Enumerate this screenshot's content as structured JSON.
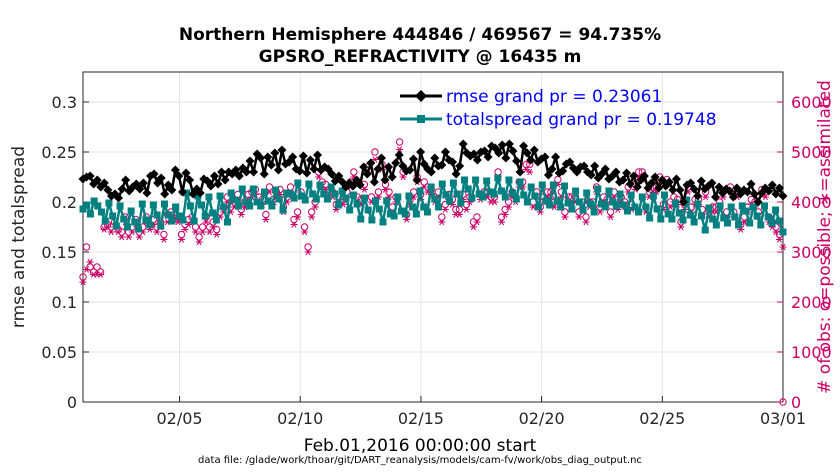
{
  "title_line1": "Northern Hemisphere 444846 / 469567 = 94.735%",
  "title_line2": "GPSRO_REFRACTIVITY @ 16435 m",
  "xlabel": "Feb.01,2016 00:00:00 start",
  "ylabel_left": "rmse and totalspread",
  "ylabel_right": "# of obs: o=possible; ∗=assimilated",
  "footer": "data file: /glade/work/thoar/git/DART_reanalysis/models/cam-fv/work/obs_diag_output.nc",
  "colors": {
    "rmse": "#000000",
    "spread": "#008080",
    "obs": "#cc0066",
    "legend_text": "#0000ff",
    "right_axis": "#cc0066"
  },
  "chart_data": {
    "type": "line",
    "x_unit": "day of Feb 2016 (6-hourly)",
    "xlim": [
      1,
      30
    ],
    "x_ticks": [
      5,
      10,
      15,
      20,
      25,
      30
    ],
    "x_tick_labels": [
      "02/05",
      "02/10",
      "02/15",
      "02/20",
      "02/25",
      "03/01"
    ],
    "ylim_left": [
      0,
      0.33
    ],
    "y_ticks_left": [
      0,
      0.05,
      0.1,
      0.15,
      0.2,
      0.25,
      0.3
    ],
    "y_tick_labels_left": [
      "0",
      "0.05",
      "0.1",
      "0.15",
      "0.2",
      "0.25",
      "0.3"
    ],
    "ylim_right": [
      0,
      6600
    ],
    "y_ticks_right": [
      0,
      1000,
      2000,
      3000,
      4000,
      5000,
      6000
    ],
    "y_tick_labels_right": [
      "0",
      "1000",
      "2000",
      "3000",
      "4000",
      "5000",
      "6000"
    ],
    "grid": true,
    "legend_position": "top-right",
    "series": [
      {
        "name": "rmse grand pr = 0.23061",
        "axis": "left",
        "marker": "diamond",
        "values": [
          0.223,
          0.225,
          0.226,
          0.218,
          0.222,
          0.215,
          0.219,
          0.212,
          0.206,
          0.208,
          0.204,
          0.213,
          0.222,
          0.211,
          0.215,
          0.218,
          0.213,
          0.219,
          0.209,
          0.226,
          0.228,
          0.219,
          0.224,
          0.208,
          0.217,
          0.212,
          0.232,
          0.226,
          0.21,
          0.229,
          0.222,
          0.208,
          0.213,
          0.209,
          0.223,
          0.221,
          0.216,
          0.226,
          0.218,
          0.23,
          0.222,
          0.23,
          0.228,
          0.232,
          0.226,
          0.234,
          0.23,
          0.241,
          0.23,
          0.248,
          0.244,
          0.228,
          0.245,
          0.237,
          0.249,
          0.232,
          0.252,
          0.238,
          0.24,
          0.245,
          0.233,
          0.231,
          0.246,
          0.229,
          0.242,
          0.233,
          0.247,
          0.232,
          0.235,
          0.233,
          0.228,
          0.221,
          0.226,
          0.22,
          0.215,
          0.219,
          0.216,
          0.222,
          0.217,
          0.235,
          0.228,
          0.239,
          0.22,
          0.233,
          0.244,
          0.222,
          0.235,
          0.225,
          0.239,
          0.247,
          0.236,
          0.231,
          0.232,
          0.243,
          0.222,
          0.25,
          0.238,
          0.233,
          0.23,
          0.244,
          0.236,
          0.237,
          0.25,
          0.242,
          0.24,
          0.228,
          0.236,
          0.258,
          0.249,
          0.246,
          0.248,
          0.242,
          0.25,
          0.251,
          0.245,
          0.256,
          0.254,
          0.249,
          0.257,
          0.244,
          0.258,
          0.251,
          0.241,
          0.23,
          0.256,
          0.249,
          0.242,
          0.252,
          0.24,
          0.243,
          0.245,
          0.227,
          0.233,
          0.245,
          0.229,
          0.231,
          0.238,
          0.24,
          0.234,
          0.23,
          0.235,
          0.236,
          0.23,
          0.227,
          0.236,
          0.224,
          0.228,
          0.233,
          0.223,
          0.226,
          0.23,
          0.22,
          0.222,
          0.229,
          0.218,
          0.226,
          0.215,
          0.222,
          0.226,
          0.214,
          0.219,
          0.225,
          0.214,
          0.222,
          0.216,
          0.22,
          0.212,
          0.223,
          0.212,
          0.2,
          0.217,
          0.219,
          0.213,
          0.206,
          0.221,
          0.213,
          0.216,
          0.219,
          0.205,
          0.215,
          0.209,
          0.213,
          0.211,
          0.205,
          0.214,
          0.208,
          0.212,
          0.21,
          0.218,
          0.208,
          0.2,
          0.209,
          0.214,
          0.211,
          0.217,
          0.208,
          0.214,
          0.206
        ],
        "color": "#000000"
      },
      {
        "name": "totalspread grand pr = 0.19748",
        "axis": "left",
        "marker": "square",
        "values": [
          0.193,
          0.197,
          0.188,
          0.201,
          0.196,
          0.19,
          0.181,
          0.199,
          0.186,
          0.176,
          0.196,
          0.183,
          0.175,
          0.191,
          0.18,
          0.173,
          0.198,
          0.182,
          0.177,
          0.197,
          0.187,
          0.176,
          0.198,
          0.187,
          0.181,
          0.195,
          0.186,
          0.182,
          0.209,
          0.196,
          0.181,
          0.206,
          0.197,
          0.186,
          0.205,
          0.189,
          0.182,
          0.206,
          0.195,
          0.18,
          0.209,
          0.202,
          0.196,
          0.213,
          0.2,
          0.196,
          0.213,
          0.2,
          0.196,
          0.21,
          0.201,
          0.196,
          0.212,
          0.203,
          0.192,
          0.209,
          0.208,
          0.204,
          0.219,
          0.206,
          0.202,
          0.218,
          0.208,
          0.203,
          0.217,
          0.208,
          0.203,
          0.215,
          0.208,
          0.197,
          0.211,
          0.204,
          0.192,
          0.207,
          0.198,
          0.183,
          0.204,
          0.192,
          0.182,
          0.201,
          0.193,
          0.18,
          0.201,
          0.188,
          0.186,
          0.205,
          0.191,
          0.188,
          0.206,
          0.195,
          0.188,
          0.211,
          0.195,
          0.19,
          0.215,
          0.203,
          0.195,
          0.218,
          0.207,
          0.201,
          0.219,
          0.208,
          0.199,
          0.222,
          0.213,
          0.204,
          0.222,
          0.208,
          0.205,
          0.221,
          0.21,
          0.208,
          0.224,
          0.211,
          0.205,
          0.222,
          0.209,
          0.203,
          0.22,
          0.207,
          0.2,
          0.215,
          0.206,
          0.195,
          0.217,
          0.201,
          0.197,
          0.217,
          0.201,
          0.195,
          0.216,
          0.199,
          0.193,
          0.211,
          0.2,
          0.192,
          0.209,
          0.198,
          0.19,
          0.213,
          0.198,
          0.195,
          0.211,
          0.2,
          0.196,
          0.208,
          0.197,
          0.191,
          0.207,
          0.195,
          0.19,
          0.205,
          0.195,
          0.184,
          0.206,
          0.193,
          0.183,
          0.207,
          0.188,
          0.183,
          0.199,
          0.189,
          0.182,
          0.202,
          0.187,
          0.18,
          0.198,
          0.186,
          0.172,
          0.194,
          0.183,
          0.177,
          0.196,
          0.184,
          0.179,
          0.195,
          0.185,
          0.177,
          0.196,
          0.191,
          0.179,
          0.195,
          0.186,
          0.177,
          0.196,
          0.185,
          0.179,
          0.192,
          0.181,
          0.17
        ],
        "color": "#008080"
      },
      {
        "name": "possible",
        "axis": "right",
        "marker": "circle",
        "values": [
          2500,
          3100,
          2700,
          2600,
          2700,
          2600,
          3500,
          3550,
          3500,
          3600,
          3450,
          3400,
          3700,
          3400,
          3500,
          3650,
          3400,
          3500,
          3700,
          3550,
          3650,
          3500,
          3600,
          3350,
          3750,
          3800,
          3750,
          3700,
          3350,
          3550,
          3650,
          3700,
          3500,
          3300,
          3500,
          3700,
          3500,
          3600,
          3450,
          3800,
          3900,
          4100,
          3900,
          4000,
          4150,
          3850,
          4000,
          4150,
          4200,
          4250,
          4100,
          4050,
          3750,
          4300,
          4050,
          4200,
          4250,
          3900,
          4100,
          4300,
          3650,
          3800,
          4200,
          3500,
          3100,
          3800,
          4000,
          4600,
          4400,
          4350,
          4250,
          4200,
          3950,
          4100,
          4050,
          4200,
          4400,
          4600,
          4100,
          4050,
          4350,
          4700,
          4100,
          5000,
          4200,
          4750,
          4350,
          4200,
          3900,
          4100,
          5200,
          4600,
          3750,
          4050,
          4200,
          4500,
          4150,
          4400,
          4300,
          4250,
          4100,
          4200,
          3700,
          3950,
          4150,
          4050,
          3850,
          3850,
          4150,
          3950,
          4100,
          3600,
          3700,
          4150,
          4200,
          4200,
          4100,
          4100,
          4600,
          3700,
          3850,
          4000,
          4200,
          4100,
          4400,
          4400,
          4750,
          4750,
          4000,
          4200,
          3900,
          4100,
          4200,
          4200,
          4000,
          4450,
          4200,
          3800,
          4100,
          4100,
          4100,
          3800,
          4000,
          3700,
          4000,
          4000,
          4300,
          3900,
          4100,
          4050,
          3800,
          4200,
          3950,
          4100,
          4000,
          4300,
          3950,
          4350,
          4600,
          4600,
          3900,
          4200,
          4300,
          4300,
          4500,
          3950,
          4450,
          4000,
          4100,
          4050,
          3600,
          3950,
          4300,
          3900,
          4050,
          4050,
          3850,
          4200,
          3800,
          3900,
          3900,
          4000,
          4200,
          3800,
          4300,
          3800,
          4200,
          3550,
          3700,
          3900,
          4050,
          4000,
          3800,
          4250,
          4200,
          3700,
          3600,
          3500,
          3350,
          0
        ],
        "color": "#cc0066"
      },
      {
        "name": "assimilated",
        "axis": "right",
        "marker": "asterisk",
        "values": [
          2400,
          2650,
          2800,
          2550,
          2550,
          2550,
          3450,
          3500,
          3400,
          3500,
          3400,
          3300,
          3600,
          3300,
          3400,
          3550,
          3300,
          3400,
          3600,
          3450,
          3550,
          3400,
          3500,
          3250,
          3600,
          3700,
          3650,
          3600,
          3250,
          3450,
          3550,
          3600,
          3400,
          3200,
          3400,
          3600,
          3400,
          3500,
          3350,
          3700,
          3800,
          4000,
          3800,
          3900,
          4050,
          3750,
          3900,
          4050,
          4100,
          4150,
          4000,
          3950,
          3650,
          4200,
          3950,
          4100,
          4150,
          3800,
          4000,
          4200,
          3550,
          3700,
          4100,
          3400,
          3000,
          3700,
          3900,
          4500,
          4300,
          4250,
          4150,
          4100,
          3850,
          4000,
          3950,
          4100,
          4300,
          4500,
          4000,
          3950,
          4250,
          4600,
          4000,
          4850,
          4100,
          4650,
          4250,
          4100,
          3800,
          4000,
          5050,
          4500,
          3650,
          3950,
          4100,
          4400,
          4050,
          4300,
          4200,
          4150,
          4000,
          4100,
          3600,
          3850,
          4050,
          3950,
          3750,
          3750,
          4050,
          3850,
          4000,
          3500,
          3600,
          4050,
          4100,
          4100,
          4000,
          4000,
          4500,
          3600,
          3750,
          3900,
          4100,
          4000,
          4300,
          4300,
          4650,
          4600,
          3900,
          4100,
          3800,
          4000,
          4100,
          4100,
          3900,
          4350,
          4100,
          3700,
          4000,
          4000,
          4000,
          3700,
          3900,
          3600,
          3900,
          3900,
          4200,
          3800,
          4000,
          3950,
          3700,
          4100,
          3850,
          4000,
          3900,
          4200,
          3850,
          4250,
          4500,
          4450,
          3800,
          4100,
          4200,
          4200,
          4400,
          3850,
          4350,
          3900,
          4000,
          3950,
          3500,
          3850,
          4200,
          3800,
          3950,
          3950,
          3750,
          4100,
          3700,
          3800,
          3800,
          3900,
          4100,
          3700,
          4200,
          3700,
          4100,
          3450,
          3600,
          3800,
          3950,
          3900,
          3700,
          4150,
          4100,
          3600,
          3500,
          3400,
          3250,
          3100
        ],
        "color": "#cc0066"
      }
    ]
  }
}
